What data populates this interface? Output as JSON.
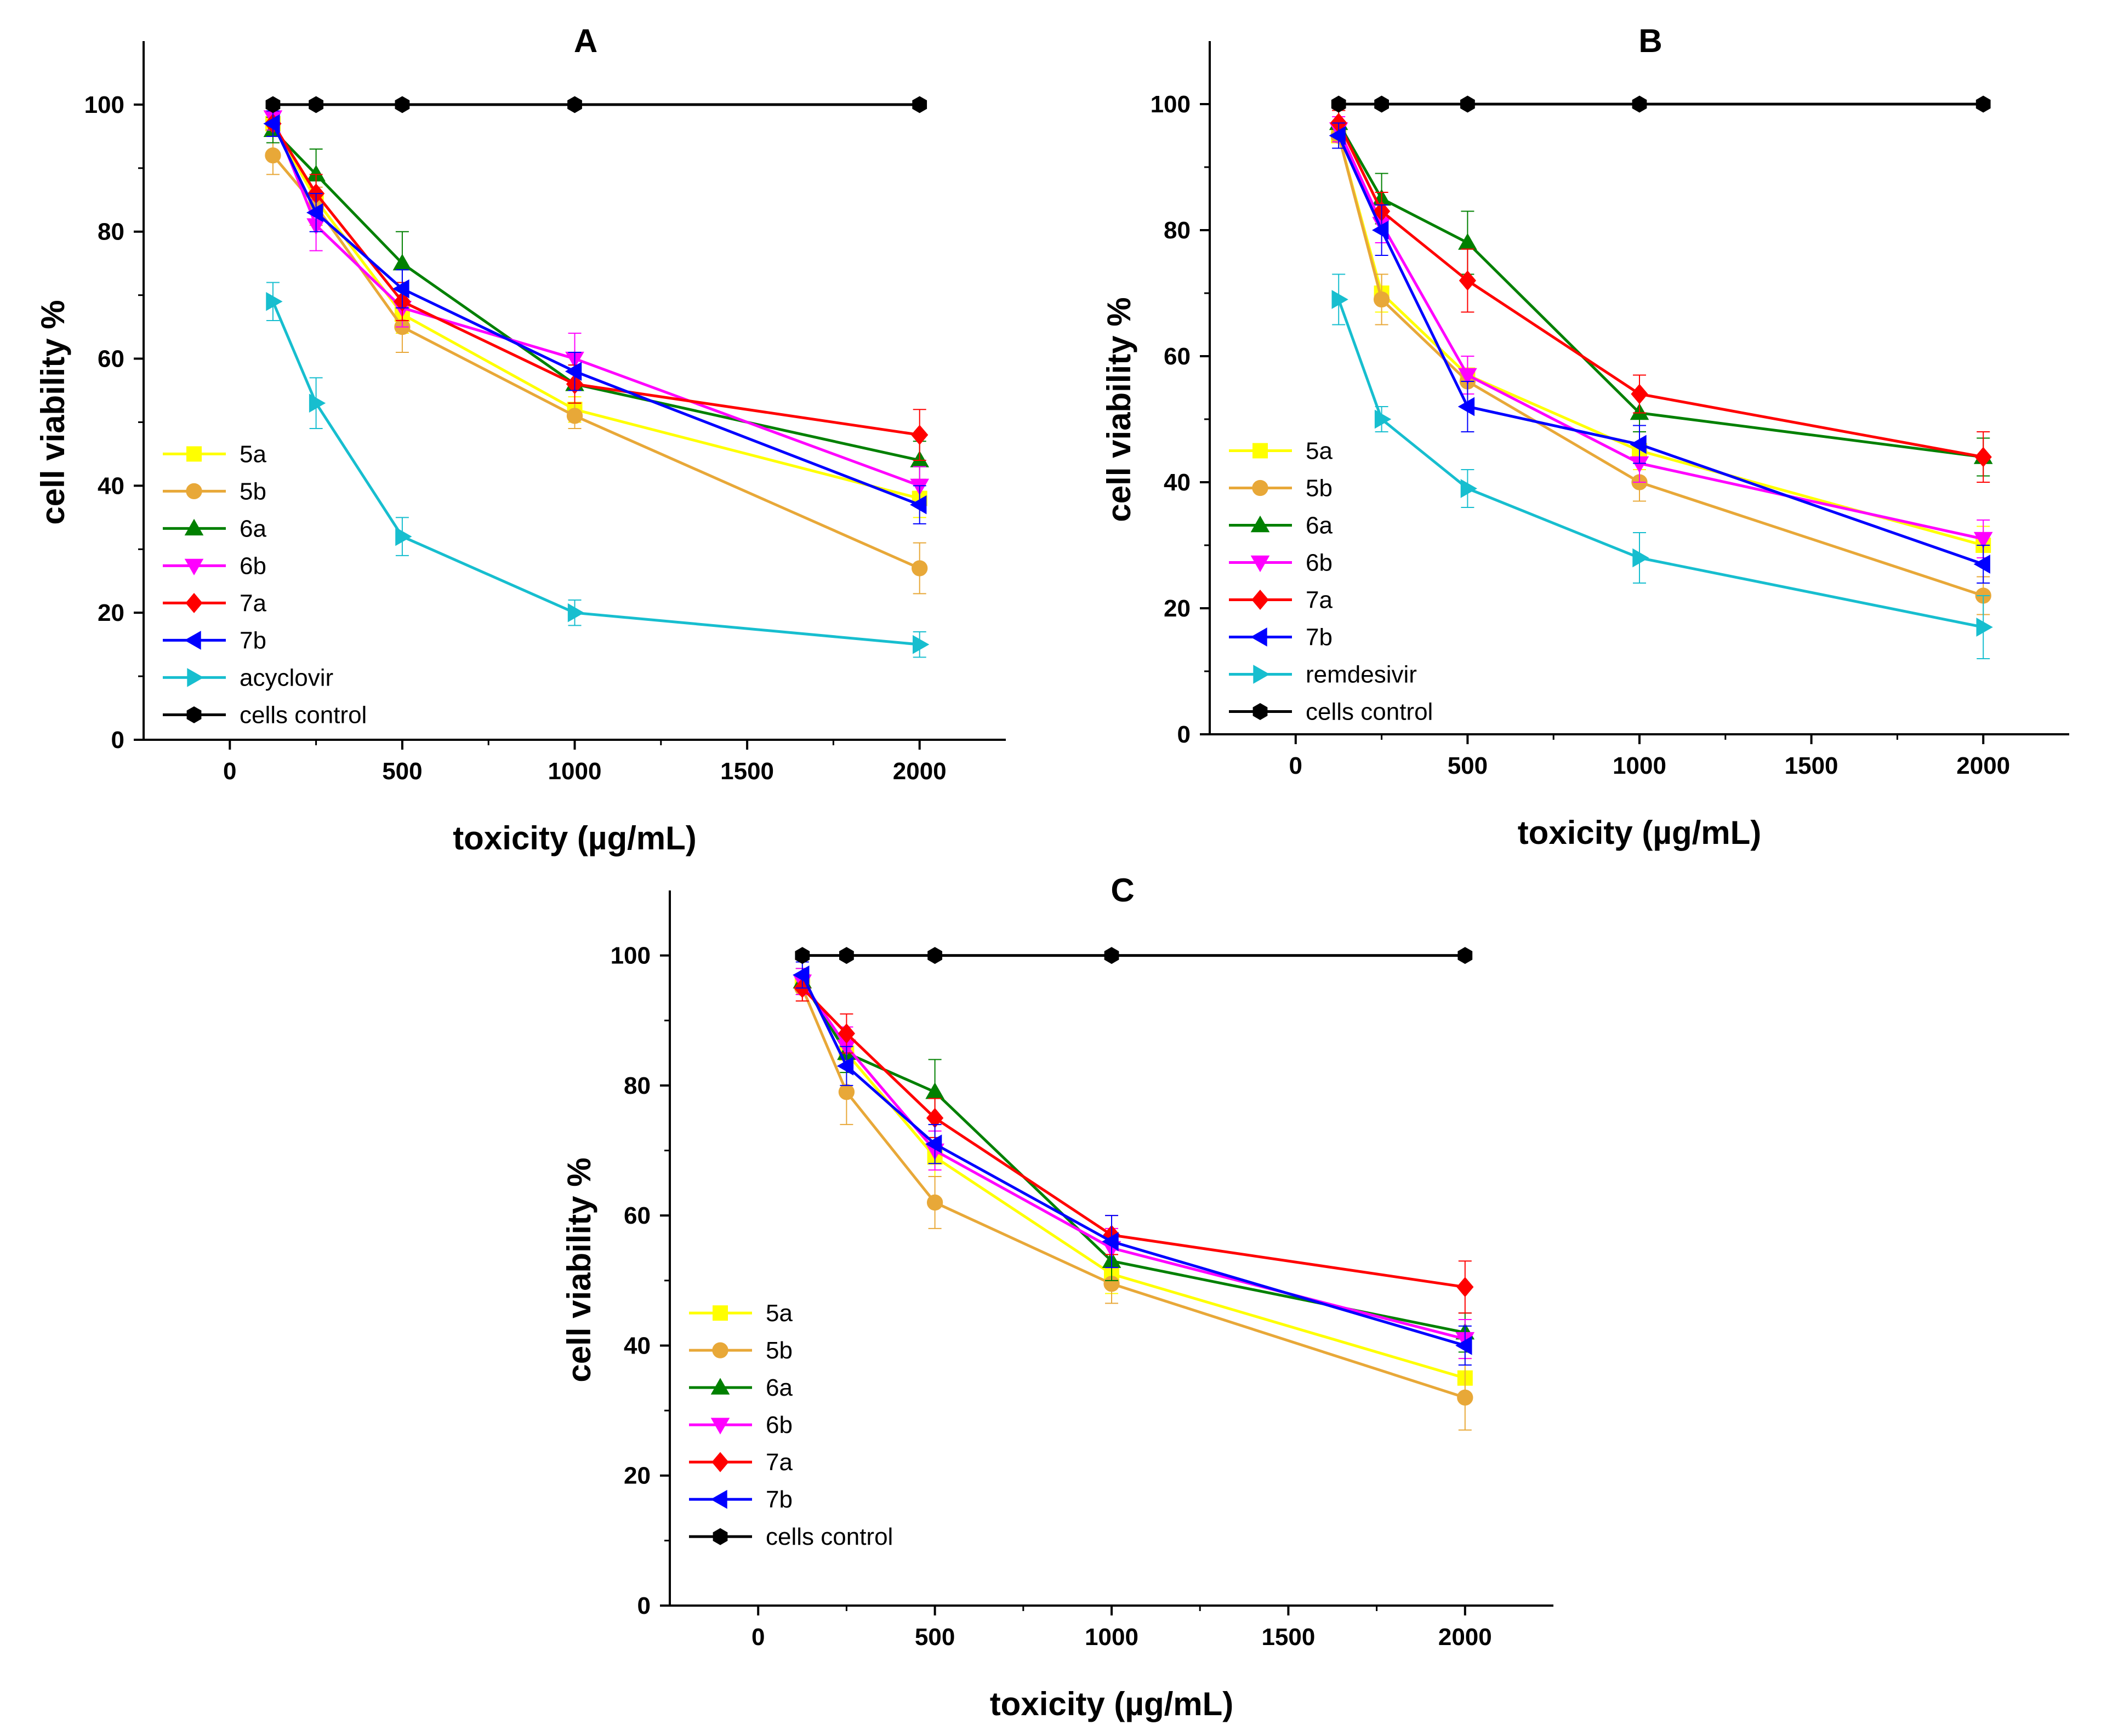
{
  "chart_data": [
    {
      "type": "line",
      "title": "A",
      "xlabel": "toxicity (µg/mL)",
      "ylabel": "cell viability %",
      "xlim": [
        -250,
        2250
      ],
      "ylim": [
        0,
        110
      ],
      "xticks": [
        0,
        500,
        1000,
        1500,
        2000
      ],
      "yticks": [
        0,
        20,
        40,
        60,
        80,
        100
      ],
      "legend_position": "bottom-left",
      "x": [
        125,
        250,
        500,
        1000,
        2000
      ],
      "series": [
        {
          "name": "5a",
          "color": "#FFFF00",
          "marker": "square",
          "values": [
            97,
            85,
            67,
            52,
            38
          ],
          "errors": [
            2,
            3,
            3,
            2,
            3
          ]
        },
        {
          "name": "5b",
          "color": "#E8A838",
          "marker": "circle",
          "values": [
            92,
            84,
            65,
            51,
            27
          ],
          "errors": [
            3,
            3,
            4,
            2,
            4
          ]
        },
        {
          "name": "6a",
          "color": "#008000",
          "marker": "triangle-up",
          "values": [
            96,
            89,
            75,
            56,
            44
          ],
          "errors": [
            2,
            4,
            5,
            3,
            3
          ]
        },
        {
          "name": "6b",
          "color": "#FF00FF",
          "marker": "triangle-down",
          "values": [
            98,
            81,
            68,
            60,
            40
          ],
          "errors": [
            2,
            4,
            3,
            4,
            3
          ]
        },
        {
          "name": "7a",
          "color": "#FF0000",
          "marker": "diamond",
          "values": [
            97,
            86,
            69,
            56,
            48
          ],
          "errors": [
            2,
            3,
            3,
            3,
            4
          ]
        },
        {
          "name": "7b",
          "color": "#0000FF",
          "marker": "triangle-left",
          "values": [
            97,
            83,
            71,
            58,
            37
          ],
          "errors": [
            2,
            3,
            3,
            3,
            3
          ]
        },
        {
          "name": "acyclovir",
          "color": "#17BECF",
          "marker": "triangle-right",
          "values": [
            69,
            53,
            32,
            20,
            15
          ],
          "errors": [
            3,
            4,
            3,
            2,
            2
          ]
        },
        {
          "name": "cells control",
          "color": "#000000",
          "marker": "hexagon",
          "values": [
            100,
            100,
            100,
            100,
            100
          ],
          "errors": [
            0,
            0,
            0,
            0,
            0
          ]
        }
      ]
    },
    {
      "type": "line",
      "title": "B",
      "xlabel": "toxicity (µg/mL)",
      "ylabel": "cell viability %",
      "xlim": [
        -250,
        2250
      ],
      "ylim": [
        0,
        110
      ],
      "xticks": [
        0,
        500,
        1000,
        1500,
        2000
      ],
      "yticks": [
        0,
        20,
        40,
        60,
        80,
        100
      ],
      "legend_position": "bottom-left",
      "x": [
        125,
        250,
        500,
        1000,
        2000
      ],
      "series": [
        {
          "name": "5a",
          "color": "#FFFF00",
          "marker": "square",
          "values": [
            95,
            70,
            57,
            45,
            30
          ],
          "errors": [
            2,
            3,
            3,
            3,
            3
          ]
        },
        {
          "name": "5b",
          "color": "#E8A838",
          "marker": "circle",
          "values": [
            95,
            69,
            56,
            40,
            22
          ],
          "errors": [
            2,
            4,
            4,
            3,
            3
          ]
        },
        {
          "name": "6a",
          "color": "#008000",
          "marker": "triangle-up",
          "values": [
            97,
            85,
            78,
            51,
            44
          ],
          "errors": [
            2,
            4,
            5,
            3,
            3
          ]
        },
        {
          "name": "6b",
          "color": "#FF00FF",
          "marker": "triangle-down",
          "values": [
            96,
            81,
            57,
            43,
            31
          ],
          "errors": [
            2,
            3,
            3,
            3,
            3
          ]
        },
        {
          "name": "7a",
          "color": "#FF0000",
          "marker": "diamond",
          "values": [
            97,
            83,
            72,
            54,
            44
          ],
          "errors": [
            2,
            3,
            5,
            3,
            4
          ]
        },
        {
          "name": "7b",
          "color": "#0000FF",
          "marker": "triangle-left",
          "values": [
            95,
            80,
            52,
            46,
            27
          ],
          "errors": [
            2,
            4,
            4,
            3,
            3
          ]
        },
        {
          "name": "remdesivir",
          "color": "#17BECF",
          "marker": "triangle-right",
          "values": [
            69,
            50,
            39,
            28,
            17
          ],
          "errors": [
            4,
            2,
            3,
            4,
            5
          ]
        },
        {
          "name": "cells control",
          "color": "#000000",
          "marker": "hexagon",
          "values": [
            100,
            100,
            100,
            100,
            100
          ],
          "errors": [
            0,
            0,
            0,
            0,
            0
          ]
        }
      ]
    },
    {
      "type": "line",
      "title": "C",
      "xlabel": "toxicity (µg/mL)",
      "ylabel": "cell viability %",
      "xlim": [
        -250,
        2250
      ],
      "ylim": [
        0,
        110
      ],
      "xticks": [
        0,
        500,
        1000,
        1500,
        2000
      ],
      "yticks": [
        0,
        20,
        40,
        60,
        80,
        100
      ],
      "legend_position": "bottom-left",
      "x": [
        125,
        250,
        500,
        1000,
        2000
      ],
      "series": [
        {
          "name": "5a",
          "color": "#FFFF00",
          "marker": "square",
          "values": [
            96,
            85,
            69,
            51,
            35
          ],
          "errors": [
            2,
            3,
            3,
            3,
            3
          ]
        },
        {
          "name": "5b",
          "color": "#E8A838",
          "marker": "circle",
          "values": [
            95,
            79,
            62,
            49.5,
            32
          ],
          "errors": [
            2,
            5,
            4,
            3,
            5
          ]
        },
        {
          "name": "6a",
          "color": "#008000",
          "marker": "triangle-up",
          "values": [
            96,
            85,
            79,
            53,
            42
          ],
          "errors": [
            2,
            3,
            5,
            3,
            3
          ]
        },
        {
          "name": "6b",
          "color": "#FF00FF",
          "marker": "triangle-down",
          "values": [
            96,
            86,
            70,
            55,
            41
          ],
          "errors": [
            2,
            3,
            3,
            3,
            3
          ]
        },
        {
          "name": "7a",
          "color": "#FF0000",
          "marker": "diamond",
          "values": [
            95,
            88,
            75,
            57,
            49
          ],
          "errors": [
            2,
            3,
            3,
            3,
            4
          ]
        },
        {
          "name": "7b",
          "color": "#0000FF",
          "marker": "triangle-left",
          "values": [
            97,
            83,
            71,
            56,
            40
          ],
          "errors": [
            2,
            3,
            3,
            4,
            3
          ]
        },
        {
          "name": "cells control",
          "color": "#000000",
          "marker": "hexagon",
          "values": [
            100,
            100,
            100,
            100,
            100
          ],
          "errors": [
            0,
            0,
            0,
            0,
            0
          ]
        }
      ]
    }
  ]
}
